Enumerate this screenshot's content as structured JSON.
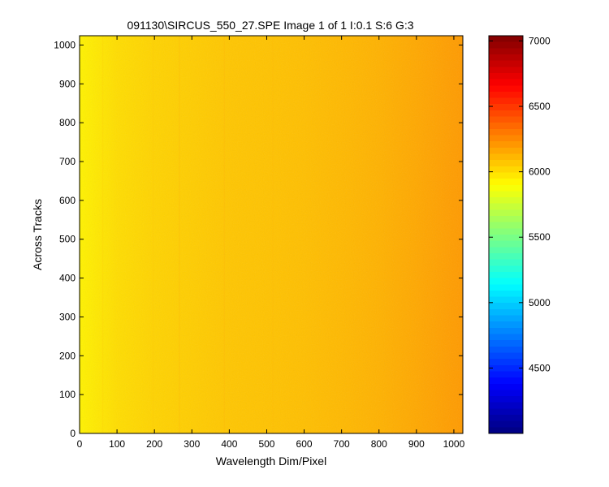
{
  "chart_data": {
    "type": "heatmap",
    "title": "091130\\SIRCUS_550_27.SPE  Image 1 of 1  I:0.1  S:6  G:3",
    "xlabel": "Wavelength Dim/Pixel",
    "ylabel": "Across Tracks",
    "xlim": [
      0,
      1024
    ],
    "ylim": [
      0,
      1024
    ],
    "x_ticks": [
      0,
      100,
      200,
      300,
      400,
      500,
      600,
      700,
      800,
      900,
      1000
    ],
    "y_ticks": [
      0,
      100,
      200,
      300,
      400,
      500,
      600,
      700,
      800,
      900,
      1000
    ],
    "colorbar": {
      "colormap": "jet",
      "range": [
        4000,
        7040
      ],
      "ticks": [
        4500,
        5000,
        5500,
        6000,
        6500,
        7000
      ]
    },
    "intensity_profile": {
      "x": [
        0,
        100,
        200,
        300,
        400,
        500,
        600,
        700,
        800,
        900,
        1024
      ],
      "values": [
        5940,
        6000,
        6030,
        6050,
        6070,
        6080,
        6090,
        6110,
        6130,
        6160,
        6200
      ]
    },
    "column_artifacts": [
      {
        "x": 60,
        "delta": 25
      },
      {
        "x": 195,
        "delta": 15
      },
      {
        "x": 265,
        "delta": 30
      },
      {
        "x": 385,
        "delta": 20
      },
      {
        "x": 515,
        "delta": 10
      }
    ],
    "grid": false,
    "colormap_colors": [
      "#00008f",
      "#0000ff",
      "#00ffff",
      "#ffff00",
      "#ff0000",
      "#800000"
    ]
  }
}
